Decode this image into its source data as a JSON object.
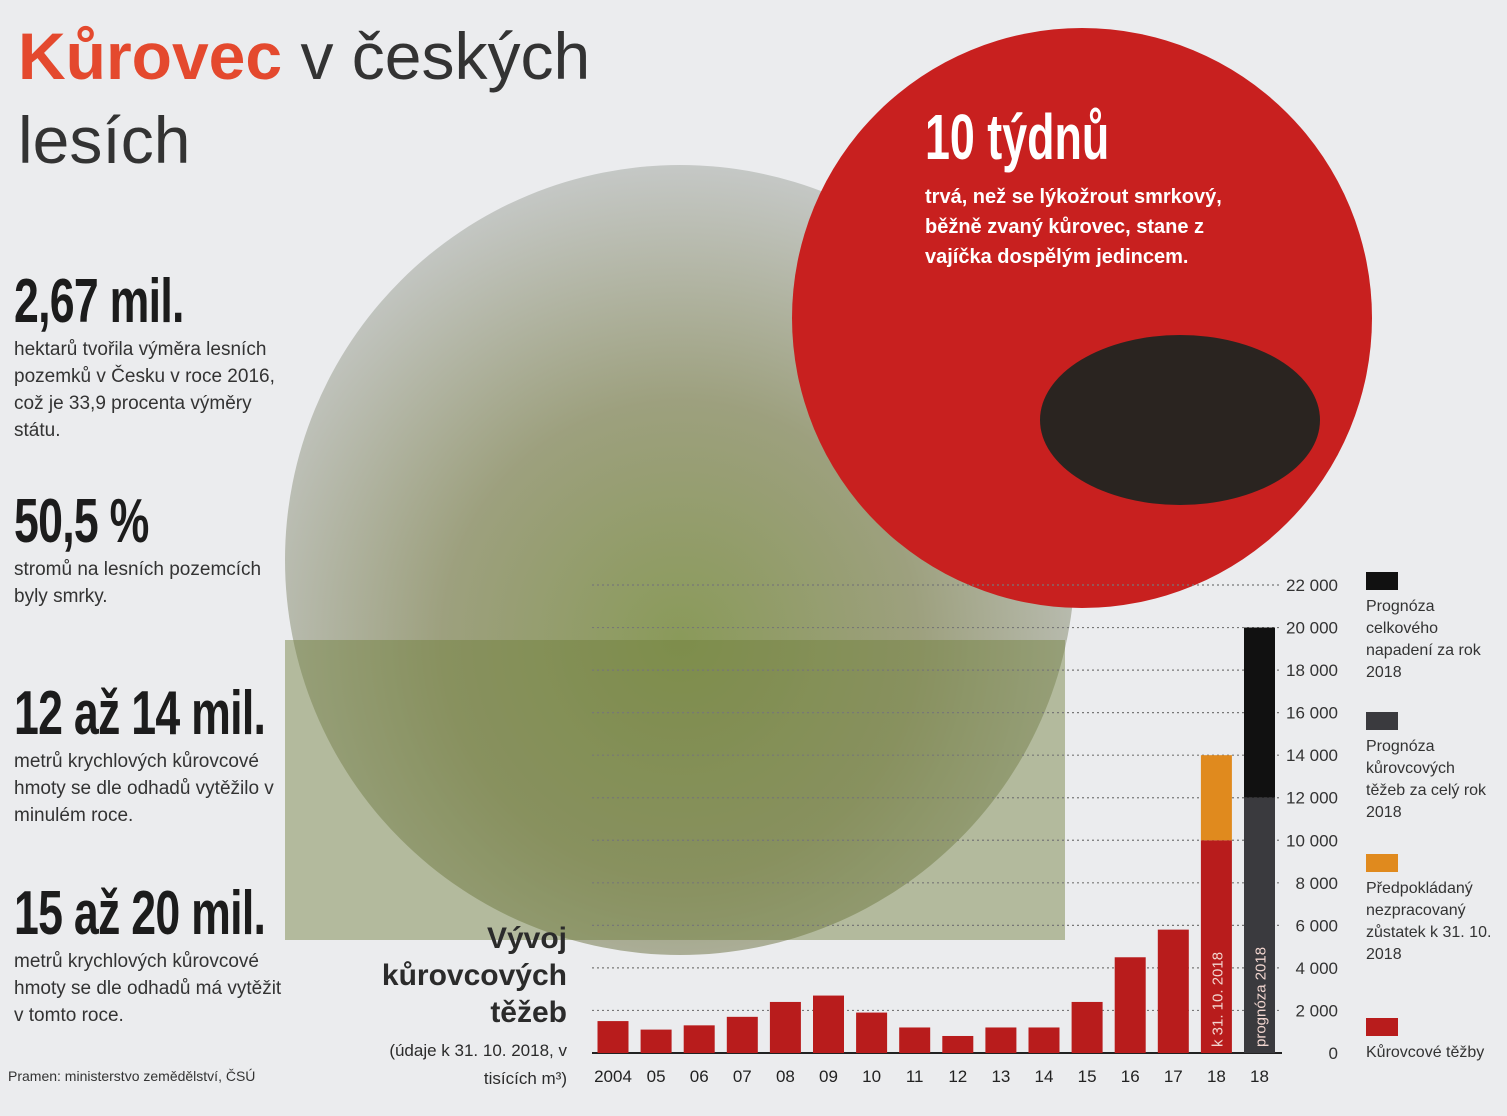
{
  "header": {
    "title_accent": "Kůrovec",
    "title_rest": "v českých lesích"
  },
  "stats": [
    {
      "value": "2,67 mil.",
      "text": "hektarů tvořila výměra lesních pozemků v Česku v roce 2016, což je 33,9 procenta výměry státu."
    },
    {
      "value": "50,5 %",
      "text": "stromů na lesních pozemcích byly smrky."
    },
    {
      "value": "12 až 14 mil.",
      "text": "metrů krychlových kůrovcové hmoty se dle odhadů vytěžilo v minulém roce."
    },
    {
      "value": "15 až 20 mil.",
      "text": "metrů krychlových kůrovcové hmoty se dle odhadů má vytěžit v tomto roce."
    }
  ],
  "highlight": {
    "value": "10 týdnů",
    "text": "trvá, než se lýkožrout smrkový, běžně zvaný kůrovec, stane z vajíčka dospělým jedincem."
  },
  "source": "Pramen: ministerstvo zemědělství, ČSÚ",
  "chart_data": {
    "type": "stacked-bar",
    "title": "Vývoj kůrovcových těžeb",
    "subtitle": "(údaje k 31. 10. 2018, v tisících m³)",
    "categories": [
      "2004",
      "05",
      "06",
      "07",
      "08",
      "09",
      "10",
      "11",
      "12",
      "13",
      "14",
      "15",
      "16",
      "17",
      "18",
      "18"
    ],
    "bar_notes": [
      "k 31. 10. 2018",
      "prognóza 2018"
    ],
    "series": [
      {
        "name": "Kůrovcové těžby",
        "color": "#b81c1c",
        "values": [
          1500,
          1100,
          1300,
          1700,
          2400,
          2700,
          1900,
          1200,
          800,
          1200,
          1200,
          2400,
          4500,
          5800,
          10000,
          null
        ]
      },
      {
        "name": "Předpokládaný nezpracovaný zůstatek k 31. 10. 2018",
        "color": "#e08a1e",
        "values": [
          null,
          null,
          null,
          null,
          null,
          null,
          null,
          null,
          null,
          null,
          null,
          null,
          null,
          null,
          4000,
          null
        ]
      },
      {
        "name": "Prognóza kůrovcových těžeb za celý rok 2018",
        "color": "#3a3a3e",
        "values": [
          null,
          null,
          null,
          null,
          null,
          null,
          null,
          null,
          null,
          null,
          null,
          null,
          null,
          null,
          null,
          12000
        ]
      },
      {
        "name": "Prognóza celkového napadení za rok 2018",
        "color": "#111111",
        "values": [
          null,
          null,
          null,
          null,
          null,
          null,
          null,
          null,
          null,
          null,
          null,
          null,
          null,
          null,
          null,
          8000
        ]
      }
    ],
    "ylim": [
      0,
      22000
    ],
    "yticks": [
      {
        "value": 0,
        "label": "0"
      },
      {
        "value": 2000,
        "label": "2 000"
      },
      {
        "value": 4000,
        "label": "4 000"
      },
      {
        "value": 6000,
        "label": "6 000"
      },
      {
        "value": 8000,
        "label": "8 000"
      },
      {
        "value": 10000,
        "label": "10 000"
      },
      {
        "value": 12000,
        "label": "12 000"
      },
      {
        "value": 14000,
        "label": "14 000"
      },
      {
        "value": 16000,
        "label": "16 000"
      },
      {
        "value": 18000,
        "label": "18 000"
      },
      {
        "value": 20000,
        "label": "20 000"
      },
      {
        "value": 22000,
        "label": "22 000"
      }
    ],
    "grid": true
  }
}
